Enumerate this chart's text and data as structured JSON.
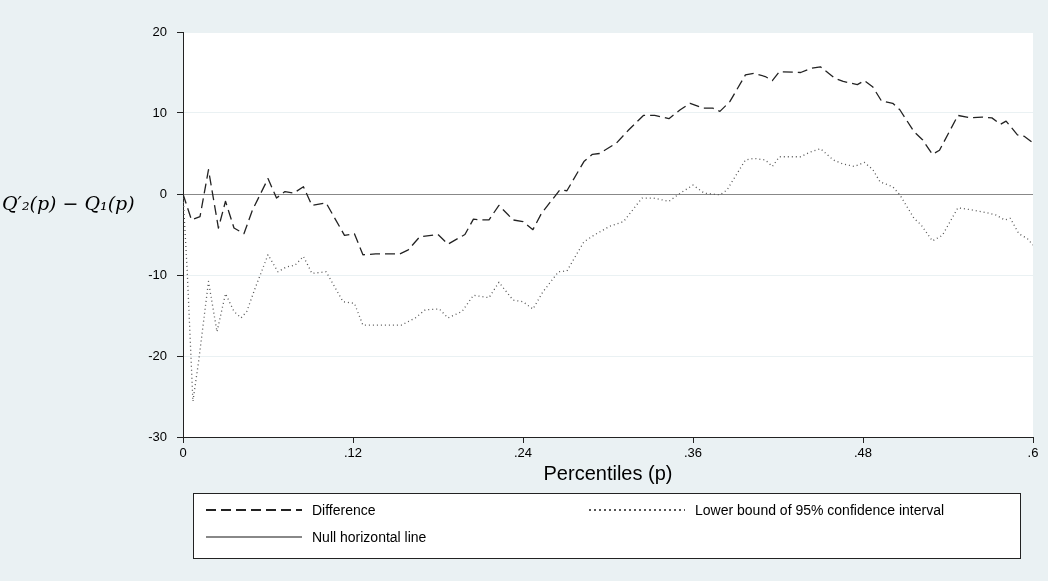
{
  "chart_data": {
    "type": "line",
    "xlabel": "Percentiles (p)",
    "ylabel": "Q′₂(p) − Q₁(p)",
    "xlim": [
      0,
      0.6
    ],
    "xticks": [
      0,
      {
        "value": 0.12,
        "label": ".12"
      },
      {
        "value": 0.24,
        "label": ".24"
      },
      {
        "value": 0.36,
        "label": ".36"
      },
      {
        "value": 0.48,
        "label": ".48"
      },
      {
        "value": 0.6,
        "label": ".6"
      }
    ],
    "ylim": [
      -30,
      20
    ],
    "yticks": [
      -30,
      -20,
      -10,
      0,
      10,
      20
    ],
    "grid": "y",
    "legend": "bottom",
    "marker": "none",
    "series": [
      {
        "name": "Difference",
        "color": "#222222",
        "line_style": "dashed",
        "x": [
          0,
          0.006,
          0.012,
          0.018,
          0.025,
          0.03,
          0.036,
          0.043,
          0.049,
          0.06,
          0.066,
          0.072,
          0.078,
          0.085,
          0.091,
          0.101,
          0.114,
          0.121,
          0.127,
          0.136,
          0.153,
          0.159,
          0.167,
          0.18,
          0.187,
          0.199,
          0.205,
          0.21,
          0.216,
          0.223,
          0.233,
          0.24,
          0.247,
          0.253,
          0.266,
          0.271,
          0.283,
          0.289,
          0.294,
          0.306,
          0.314,
          0.325,
          0.333,
          0.343,
          0.351,
          0.358,
          0.367,
          0.374,
          0.379,
          0.386,
          0.397,
          0.403,
          0.411,
          0.416,
          0.421,
          0.436,
          0.443,
          0.45,
          0.46,
          0.466,
          0.476,
          0.481,
          0.487,
          0.493,
          0.501,
          0.506,
          0.516,
          0.522,
          0.529,
          0.534,
          0.547,
          0.556,
          0.564,
          0.571,
          0.577,
          0.581,
          0.589,
          0.594,
          0.6
        ],
        "values": [
          0,
          -3.2,
          -2.8,
          3.0,
          -4.2,
          -0.9,
          -4.2,
          -4.9,
          -2.0,
          1.9,
          -0.5,
          0.3,
          0.1,
          0.9,
          -1.4,
          -1.1,
          -5.1,
          -4.9,
          -7.5,
          -7.4,
          -7.4,
          -6.9,
          -5.3,
          -5.0,
          -6.2,
          -5.0,
          -3.1,
          -3.2,
          -3.2,
          -1.4,
          -3.2,
          -3.4,
          -4.4,
          -2.4,
          0.5,
          0.4,
          4.0,
          4.9,
          5.0,
          6.3,
          7.8,
          9.7,
          9.7,
          9.3,
          10.4,
          11.2,
          10.6,
          10.6,
          10.2,
          11.4,
          14.7,
          14.9,
          14.5,
          14.0,
          15.1,
          15.0,
          15.5,
          15.7,
          14.3,
          13.9,
          13.5,
          14.0,
          13.2,
          11.5,
          11.2,
          10.4,
          7.7,
          6.7,
          4.9,
          5.4,
          9.7,
          9.4,
          9.5,
          9.4,
          8.6,
          9.0,
          7.3,
          7.1,
          6.3
        ]
      },
      {
        "name": "Lower bound of 95% confidence interval",
        "color": "#555555",
        "line_style": "dotted",
        "x": [
          0,
          0.003,
          0.007,
          0.011,
          0.018,
          0.024,
          0.03,
          0.036,
          0.041,
          0.045,
          0.051,
          0.06,
          0.067,
          0.073,
          0.079,
          0.085,
          0.091,
          0.101,
          0.113,
          0.121,
          0.127,
          0.143,
          0.154,
          0.164,
          0.171,
          0.181,
          0.187,
          0.197,
          0.205,
          0.216,
          0.223,
          0.233,
          0.24,
          0.247,
          0.254,
          0.265,
          0.271,
          0.283,
          0.29,
          0.301,
          0.311,
          0.324,
          0.332,
          0.343,
          0.351,
          0.36,
          0.368,
          0.379,
          0.384,
          0.397,
          0.403,
          0.411,
          0.416,
          0.421,
          0.436,
          0.443,
          0.45,
          0.459,
          0.466,
          0.474,
          0.481,
          0.487,
          0.492,
          0.501,
          0.506,
          0.516,
          0.521,
          0.529,
          0.536,
          0.547,
          0.558,
          0.567,
          0.574,
          0.58,
          0.584,
          0.59,
          0.596,
          0.6
        ],
        "values": [
          0,
          -9.6,
          -25.6,
          -20.7,
          -10.8,
          -17.0,
          -12.3,
          -14.5,
          -15.3,
          -14.5,
          -11.6,
          -7.5,
          -9.6,
          -9.0,
          -8.8,
          -7.7,
          -9.8,
          -9.6,
          -13.3,
          -13.5,
          -16.2,
          -16.2,
          -16.2,
          -15.3,
          -14.3,
          -14.2,
          -15.3,
          -14.5,
          -12.5,
          -12.8,
          -10.9,
          -13.1,
          -13.3,
          -14.2,
          -12.1,
          -9.6,
          -9.5,
          -5.9,
          -5.1,
          -4.0,
          -3.4,
          -0.5,
          -0.5,
          -0.9,
          0.1,
          1.1,
          0.1,
          -0.1,
          0.5,
          4.2,
          4.4,
          4.2,
          3.4,
          4.6,
          4.6,
          5.2,
          5.6,
          4.2,
          3.7,
          3.4,
          3.9,
          3.0,
          1.5,
          0.9,
          -0.1,
          -3.0,
          -3.8,
          -5.8,
          -5.1,
          -1.7,
          -2.0,
          -2.3,
          -2.6,
          -3.2,
          -3.0,
          -4.9,
          -5.5,
          -6.3
        ]
      }
    ],
    "ref_lines": [
      {
        "axis": "y",
        "value": 0,
        "label": "Null horizontal line",
        "color": "#888888",
        "line_style": "solid"
      }
    ]
  }
}
